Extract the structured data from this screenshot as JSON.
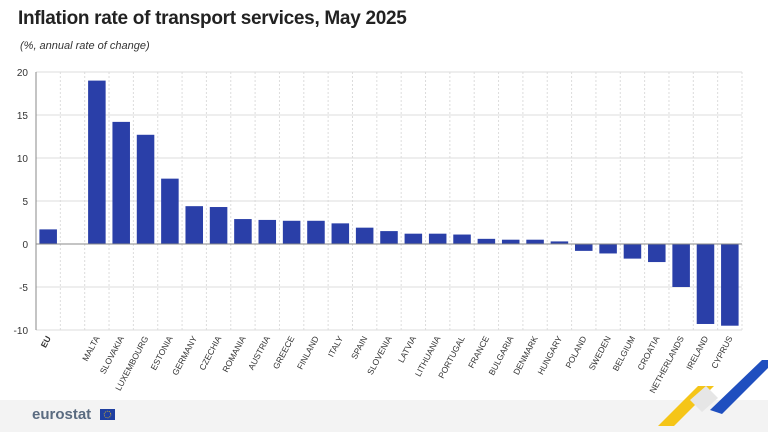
{
  "header": {
    "title": "Inflation rate of transport services, May 2025",
    "subtitle": "(%, annual rate of change)"
  },
  "footer": {
    "logo_text": "eurostat"
  },
  "colors": {
    "bar": "#2a3fa8",
    "grid": "#dcdcdc",
    "axis": "#888888",
    "logo": "#5a6b80",
    "accent_yellow": "#f5c518",
    "accent_blue": "#1f4fbf"
  },
  "chart_data": {
    "type": "bar",
    "title": "Inflation rate of transport services, May 2025",
    "subtitle": "(%, annual rate of change)",
    "xlabel": "",
    "ylabel": "",
    "ylim": [
      -10,
      20
    ],
    "yticks": [
      20,
      15,
      10,
      5,
      0,
      -5,
      -10
    ],
    "grid": true,
    "categories": [
      "EU",
      "",
      "MALTA",
      "SLOVAKIA",
      "LUXEMBOURG",
      "ESTONIA",
      "GERMANY",
      "CZECHIA",
      "ROMANIA",
      "AUSTRIA",
      "GREECE",
      "FINLAND",
      "ITALY",
      "SPAIN",
      "SLOVENIA",
      "LATVIA",
      "LITHUANIA",
      "PORTUGAL",
      "FRANCE",
      "BULGARIA",
      "DENMARK",
      "HUNGARY",
      "POLAND",
      "SWEDEN",
      "BELGIUM",
      "CROATIA",
      "NETHERLANDS",
      "IRELAND",
      "CYPRUS"
    ],
    "values": [
      1.7,
      null,
      19.0,
      14.2,
      12.7,
      7.6,
      4.4,
      4.3,
      2.9,
      2.8,
      2.7,
      2.7,
      2.4,
      1.9,
      1.5,
      1.2,
      1.2,
      1.1,
      0.6,
      0.5,
      0.5,
      0.3,
      -0.8,
      -1.1,
      -1.7,
      -2.1,
      -5.0,
      -9.3,
      -9.5
    ]
  }
}
